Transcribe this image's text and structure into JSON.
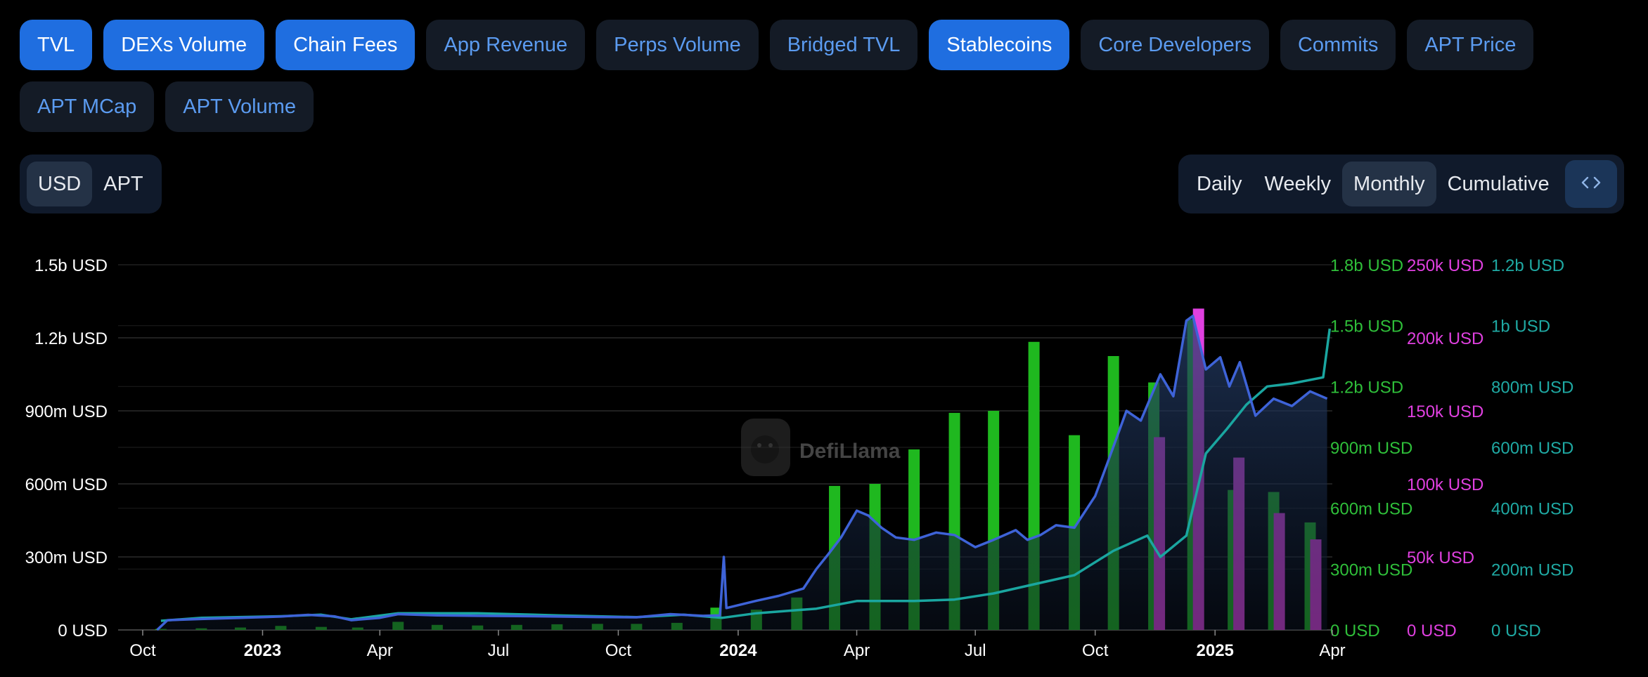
{
  "metric_tabs": [
    {
      "label": "TVL",
      "active": true
    },
    {
      "label": "DEXs Volume",
      "active": true
    },
    {
      "label": "Chain Fees",
      "active": true
    },
    {
      "label": "App Revenue",
      "active": false
    },
    {
      "label": "Perps Volume",
      "active": false
    },
    {
      "label": "Bridged TVL",
      "active": false
    },
    {
      "label": "Stablecoins",
      "active": true
    },
    {
      "label": "Core Developers",
      "active": false
    },
    {
      "label": "Commits",
      "active": false
    },
    {
      "label": "APT Price",
      "active": false
    },
    {
      "label": "APT MCap",
      "active": false
    },
    {
      "label": "APT Volume",
      "active": false
    }
  ],
  "currency_toggle": {
    "options": [
      "USD",
      "APT"
    ],
    "selected": "USD"
  },
  "period_toggle": {
    "options": [
      "Daily",
      "Weekly",
      "Monthly",
      "Cumulative"
    ],
    "selected": "Monthly"
  },
  "watermark": "DefiLlama",
  "icons": {
    "embed": "code-brackets-icon",
    "logo": "llama-logo-icon"
  },
  "colors": {
    "tvl": "#3e63d8",
    "dex": "#1fb81f",
    "fees": "#e040e0",
    "stable": "#1aa6a0"
  },
  "chart_data": {
    "type": "line",
    "title": "",
    "x_ticks": [
      "Oct",
      "2023",
      "Apr",
      "Jul",
      "Oct",
      "2024",
      "Apr",
      "Jul",
      "Oct",
      "2025",
      "Apr"
    ],
    "xlim": [
      "2022-09-24",
      "2025-04-01"
    ],
    "axes": {
      "left_tvl": {
        "ticks": [
          "0 USD",
          "300m USD",
          "600m USD",
          "900m USD",
          "1.2b USD",
          "1.5b USD"
        ],
        "ylim": [
          0,
          1500000000
        ]
      },
      "right_dex": {
        "ticks": [
          "0 USD",
          "300m USD",
          "600m USD",
          "900m USD",
          "1.2b USD",
          "1.5b USD",
          "1.8b USD"
        ],
        "ylim": [
          0,
          1800000000
        ]
      },
      "right_fees": {
        "ticks": [
          "0 USD",
          "50k USD",
          "100k USD",
          "150k USD",
          "200k USD",
          "250k USD"
        ],
        "ylim": [
          0,
          250000
        ]
      },
      "right_stable": {
        "ticks": [
          "0 USD",
          "200m USD",
          "400m USD",
          "600m USD",
          "800m USD",
          "1b USD",
          "1.2b USD"
        ],
        "ylim": [
          0,
          1200000000
        ]
      }
    },
    "series": [
      {
        "name": "TVL",
        "type": "area",
        "axis": "left_tvl",
        "points": [
          [
            "2022-10-12",
            0
          ],
          [
            "2022-10-20",
            40000000
          ],
          [
            "2022-11-15",
            45000000
          ],
          [
            "2022-12-15",
            50000000
          ],
          [
            "2023-01-15",
            55000000
          ],
          [
            "2023-02-05",
            62000000
          ],
          [
            "2023-02-25",
            56000000
          ],
          [
            "2023-03-10",
            40000000
          ],
          [
            "2023-04-01",
            50000000
          ],
          [
            "2023-04-15",
            65000000
          ],
          [
            "2023-05-15",
            60000000
          ],
          [
            "2023-06-15",
            58000000
          ],
          [
            "2023-07-15",
            57000000
          ],
          [
            "2023-08-15",
            55000000
          ],
          [
            "2023-09-15",
            53000000
          ],
          [
            "2023-10-15",
            52000000
          ],
          [
            "2023-11-10",
            65000000
          ],
          [
            "2023-12-05",
            58000000
          ],
          [
            "2023-12-18",
            60000000
          ],
          [
            "2023-12-21",
            300000000
          ],
          [
            "2023-12-23",
            90000000
          ],
          [
            "2024-01-15",
            120000000
          ],
          [
            "2024-02-01",
            140000000
          ],
          [
            "2024-02-20",
            170000000
          ],
          [
            "2024-03-01",
            250000000
          ],
          [
            "2024-03-10",
            310000000
          ],
          [
            "2024-03-20",
            380000000
          ],
          [
            "2024-04-01",
            490000000
          ],
          [
            "2024-04-10",
            470000000
          ],
          [
            "2024-04-20",
            420000000
          ],
          [
            "2024-05-01",
            380000000
          ],
          [
            "2024-05-15",
            370000000
          ],
          [
            "2024-06-01",
            400000000
          ],
          [
            "2024-06-15",
            390000000
          ],
          [
            "2024-07-01",
            340000000
          ],
          [
            "2024-07-15",
            370000000
          ],
          [
            "2024-08-01",
            410000000
          ],
          [
            "2024-08-10",
            370000000
          ],
          [
            "2024-08-20",
            390000000
          ],
          [
            "2024-09-01",
            430000000
          ],
          [
            "2024-09-15",
            420000000
          ],
          [
            "2024-10-01",
            550000000
          ],
          [
            "2024-10-10",
            680000000
          ],
          [
            "2024-10-25",
            900000000
          ],
          [
            "2024-11-05",
            860000000
          ],
          [
            "2024-11-20",
            1050000000
          ],
          [
            "2024-11-30",
            960000000
          ],
          [
            "2024-12-10",
            1270000000
          ],
          [
            "2024-12-15",
            1290000000
          ],
          [
            "2024-12-25",
            1070000000
          ],
          [
            "2025-01-05",
            1120000000
          ],
          [
            "2025-01-12",
            1000000000
          ],
          [
            "2025-01-20",
            1100000000
          ],
          [
            "2025-02-01",
            880000000
          ],
          [
            "2025-02-15",
            950000000
          ],
          [
            "2025-03-01",
            920000000
          ],
          [
            "2025-03-15",
            980000000
          ],
          [
            "2025-03-28",
            950000000
          ]
        ]
      },
      {
        "name": "Stablecoins",
        "type": "line",
        "axis": "right_stable",
        "points": [
          [
            "2022-10-15",
            30000000
          ],
          [
            "2022-11-15",
            40000000
          ],
          [
            "2023-01-15",
            45000000
          ],
          [
            "2023-02-15",
            50000000
          ],
          [
            "2023-03-10",
            35000000
          ],
          [
            "2023-04-15",
            55000000
          ],
          [
            "2023-06-15",
            55000000
          ],
          [
            "2023-08-15",
            48000000
          ],
          [
            "2023-10-15",
            42000000
          ],
          [
            "2023-11-20",
            50000000
          ],
          [
            "2023-12-20",
            40000000
          ],
          [
            "2024-01-15",
            55000000
          ],
          [
            "2024-03-01",
            70000000
          ],
          [
            "2024-04-01",
            95000000
          ],
          [
            "2024-05-15",
            95000000
          ],
          [
            "2024-06-15",
            100000000
          ],
          [
            "2024-07-15",
            120000000
          ],
          [
            "2024-08-15",
            150000000
          ],
          [
            "2024-09-15",
            180000000
          ],
          [
            "2024-10-15",
            260000000
          ],
          [
            "2024-11-10",
            310000000
          ],
          [
            "2024-11-20",
            240000000
          ],
          [
            "2024-12-10",
            310000000
          ],
          [
            "2024-12-25",
            580000000
          ],
          [
            "2025-01-10",
            660000000
          ],
          [
            "2025-01-25",
            740000000
          ],
          [
            "2025-02-10",
            800000000
          ],
          [
            "2025-03-01",
            810000000
          ],
          [
            "2025-03-25",
            830000000
          ],
          [
            "2025-03-30",
            990000000
          ]
        ]
      },
      {
        "name": "DEXs Volume",
        "type": "bar",
        "axis": "right_dex",
        "categories": [
          "2022-10",
          "2022-11",
          "2022-12",
          "2023-01",
          "2023-02",
          "2023-03",
          "2023-04",
          "2023-05",
          "2023-06",
          "2023-07",
          "2023-08",
          "2023-09",
          "2023-10",
          "2023-11",
          "2023-12",
          "2024-01",
          "2024-02",
          "2024-03",
          "2024-04",
          "2024-05",
          "2024-06",
          "2024-07",
          "2024-08",
          "2024-09",
          "2024-10",
          "2024-11",
          "2024-12",
          "2025-01",
          "2025-02",
          "2025-03"
        ],
        "values": [
          5000000,
          8000000,
          12000000,
          20000000,
          15000000,
          12000000,
          40000000,
          25000000,
          22000000,
          25000000,
          28000000,
          30000000,
          30000000,
          35000000,
          110000000,
          100000000,
          160000000,
          710000000,
          720000000,
          890000000,
          1070000000,
          1080000000,
          1420000000,
          960000000,
          1350000000,
          1220000000,
          1530000000,
          690000000,
          680000000,
          530000000
        ]
      },
      {
        "name": "Chain Fees",
        "type": "bar",
        "axis": "right_fees",
        "categories": [
          "2024-11",
          "2024-12",
          "2025-01",
          "2025-02",
          "2025-03"
        ],
        "values": [
          132000,
          220000,
          118000,
          80000,
          62000
        ]
      }
    ]
  }
}
